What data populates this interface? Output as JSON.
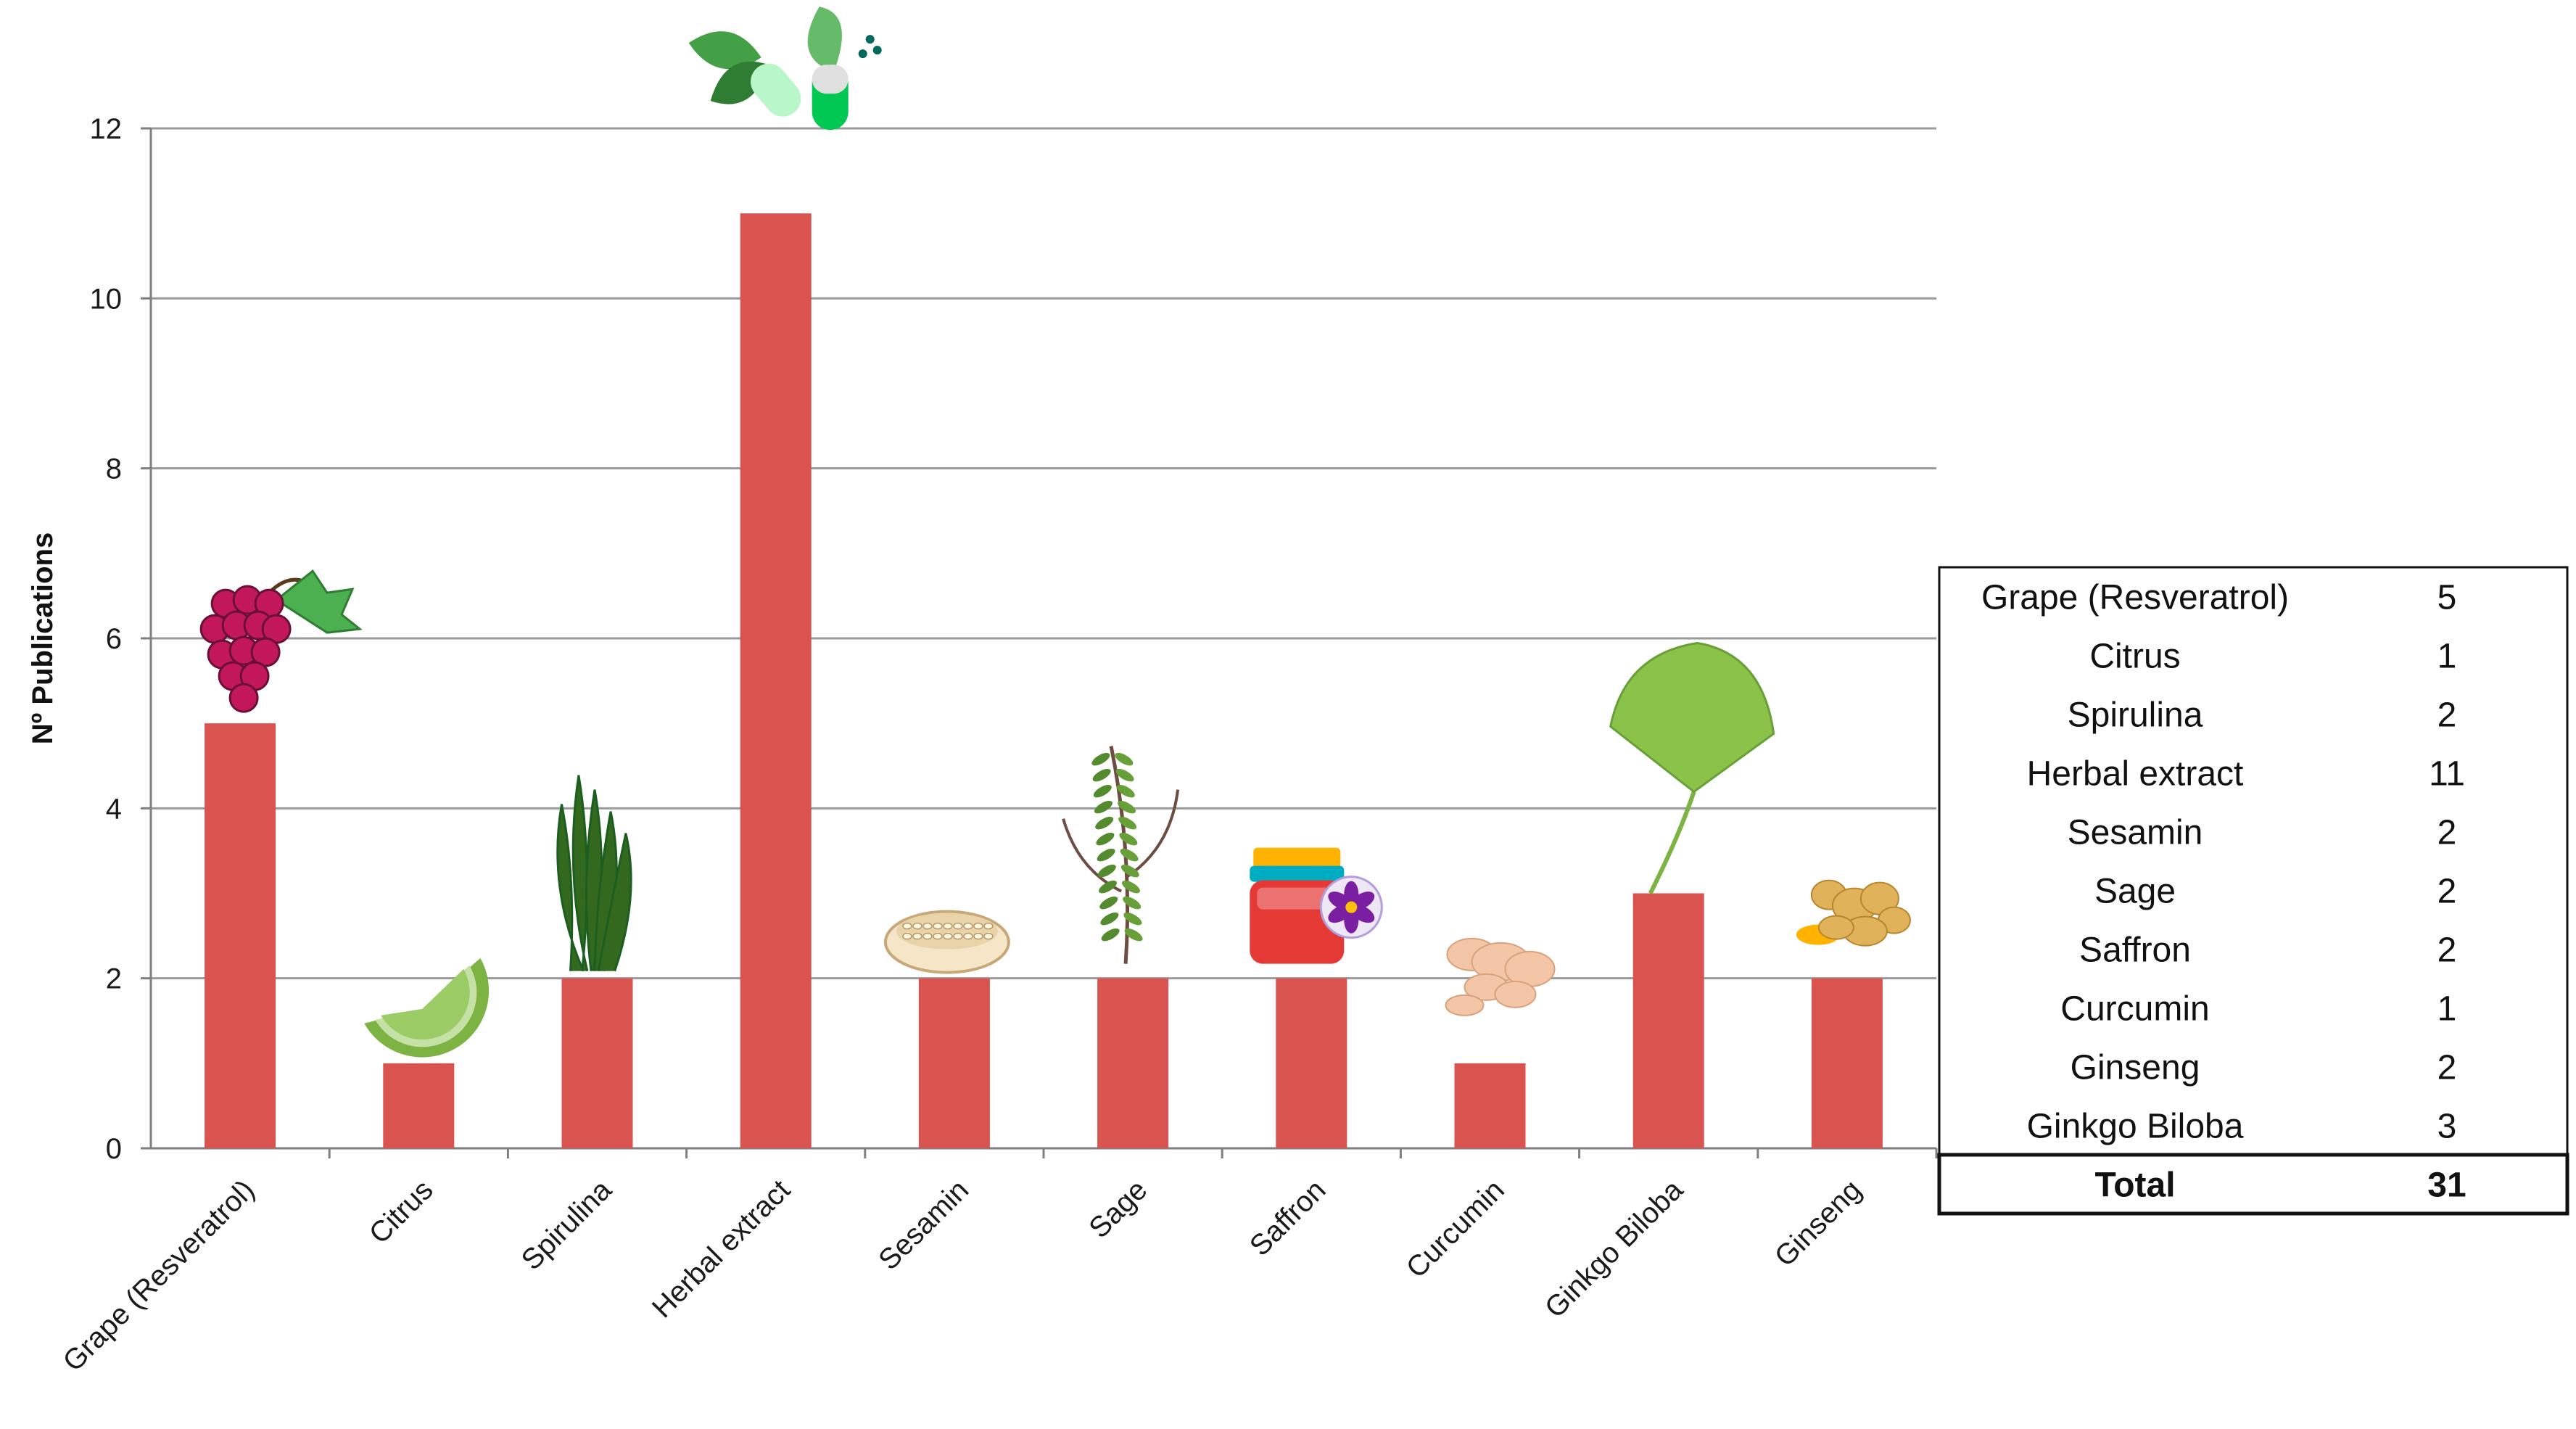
{
  "chart_data": {
    "type": "bar",
    "ylabel": "Nº Publications",
    "xlabel": "",
    "ylim": [
      0,
      12
    ],
    "yticks": [
      0,
      2,
      4,
      6,
      8,
      10,
      12
    ],
    "grid": true,
    "bar_color": "#d9534f",
    "categories": [
      "Grape (Resveratrol)",
      "Citrus",
      "Spirulina",
      "Herbal extract",
      "Sesamin",
      "Sage",
      "Saffron",
      "Curcumin",
      "Ginkgo Biloba",
      "Ginseng"
    ],
    "values": [
      5,
      1,
      2,
      11,
      2,
      2,
      2,
      1,
      3,
      2
    ],
    "icons": [
      "grapes-icon",
      "lime-slice-icon",
      "spirulina-seaweed-icon",
      "herbal-capsule-leaves-icon",
      "sesame-seeds-icon",
      "sage-sprig-icon",
      "saffron-jar-icon",
      "curcumin-root-icon",
      "ginkgo-leaf-icon",
      "ginseng-root-icon"
    ]
  },
  "summary_table": {
    "rows": [
      {
        "label": "Grape (Resveratrol)",
        "value": "5"
      },
      {
        "label": "Citrus",
        "value": "1"
      },
      {
        "label": "Spirulina",
        "value": "2"
      },
      {
        "label": "Herbal extract",
        "value": "11"
      },
      {
        "label": "Sesamin",
        "value": "2"
      },
      {
        "label": "Sage",
        "value": "2"
      },
      {
        "label": "Saffron",
        "value": "2"
      },
      {
        "label": "Curcumin",
        "value": "1"
      },
      {
        "label": "Ginseng",
        "value": "2"
      },
      {
        "label": "Ginkgo Biloba",
        "value": "3"
      }
    ],
    "total_label": "Total",
    "total_value": "31"
  }
}
